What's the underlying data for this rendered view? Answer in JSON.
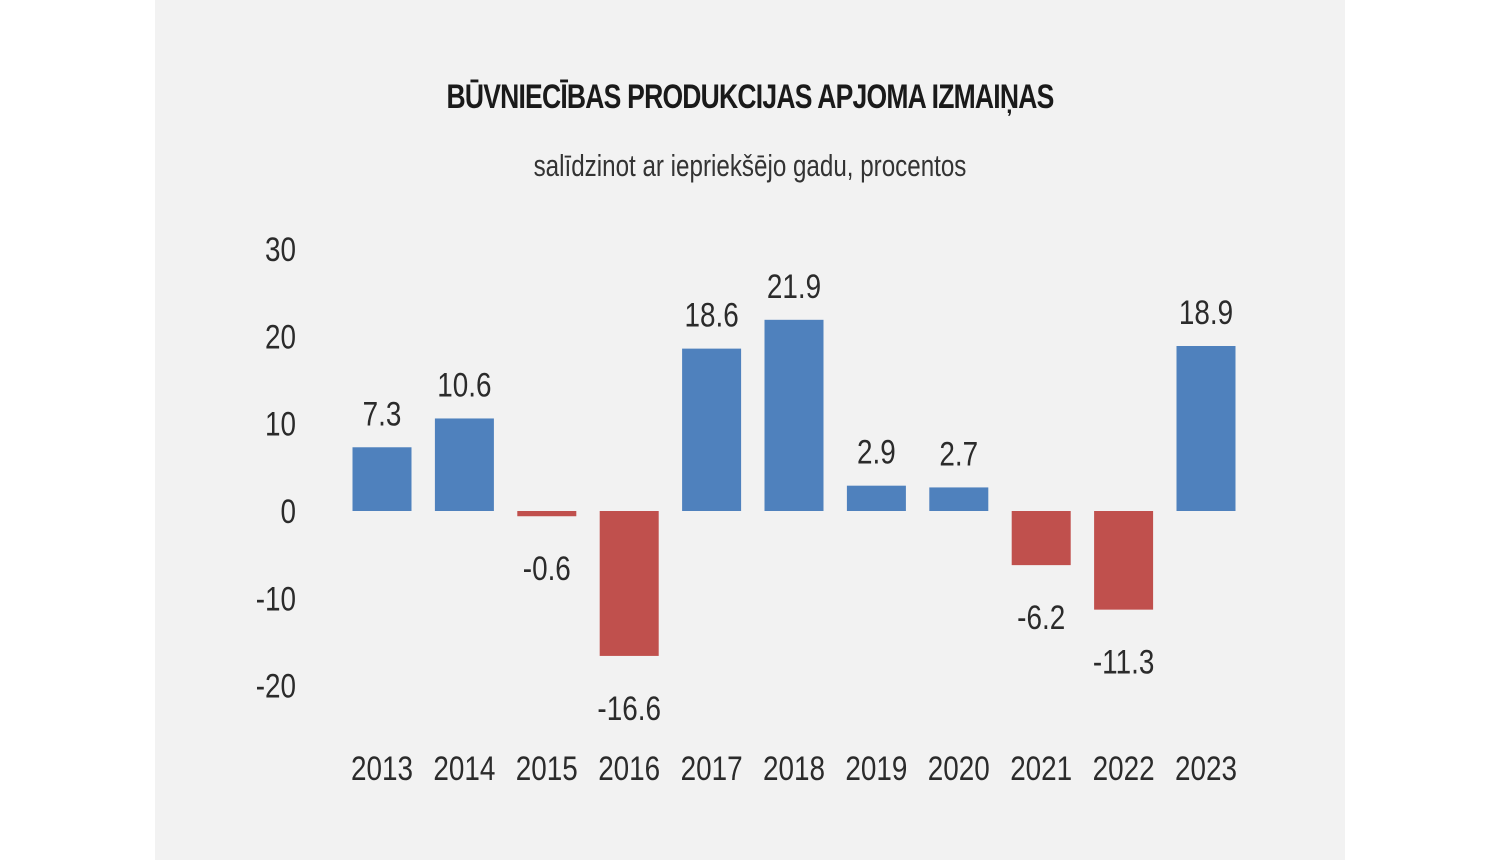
{
  "chart_data": {
    "type": "bar",
    "title": "BŪVNIECĪBAS PRODUKCIJAS APJOMA IZMAIŅAS",
    "subtitle": "salīdzinot ar iepriekšējo gadu, procentos",
    "xlabel": "",
    "ylabel": "",
    "categories": [
      "2013",
      "2014",
      "2015",
      "2016",
      "2017",
      "2018",
      "2019",
      "2020",
      "2021",
      "2022",
      "2023"
    ],
    "values": [
      7.3,
      10.6,
      -0.6,
      -16.6,
      18.6,
      21.9,
      2.9,
      2.7,
      -6.2,
      -11.3,
      18.9
    ],
    "value_labels": [
      "7.3",
      "10.6",
      "-0.6",
      "-16.6",
      "18.6",
      "21.9",
      "2.9",
      "2.7",
      "-6.2",
      "-11.3",
      "18.9"
    ],
    "yticks": [
      "30",
      "20",
      "10",
      "0",
      "-10",
      "-20"
    ],
    "ytick_values": [
      30,
      20,
      10,
      0,
      -10,
      -20
    ],
    "ylim": [
      -20,
      30
    ],
    "grid": false,
    "legend": "none",
    "colors": {
      "positive": "#4f81bd",
      "negative": "#c0504d"
    }
  }
}
